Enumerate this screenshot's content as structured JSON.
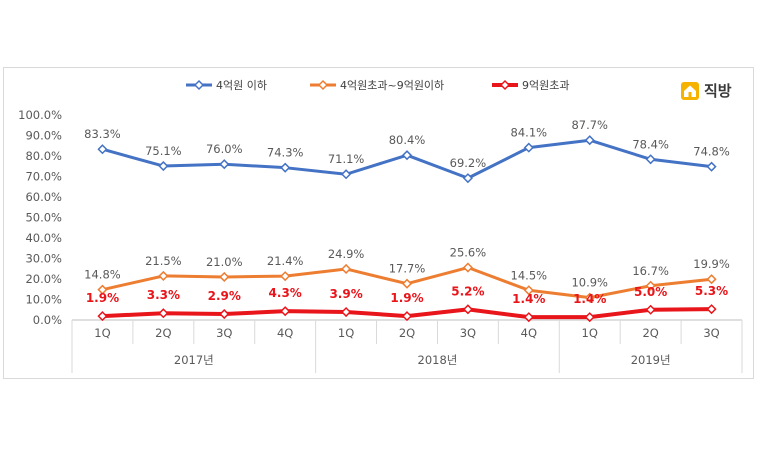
{
  "brand": {
    "name": "직방"
  },
  "chart_data": {
    "type": "line",
    "categories": [
      "1Q",
      "2Q",
      "3Q",
      "4Q",
      "1Q",
      "2Q",
      "3Q",
      "4Q",
      "1Q",
      "2Q",
      "3Q"
    ],
    "groups": [
      {
        "label": "2017년",
        "span": 4
      },
      {
        "label": "2018년",
        "span": 4
      },
      {
        "label": "2019년",
        "span": 3
      }
    ],
    "ylim": [
      0,
      100
    ],
    "yticks": [
      "0.0%",
      "10.0%",
      "20.0%",
      "30.0%",
      "40.0%",
      "50.0%",
      "60.0%",
      "70.0%",
      "80.0%",
      "90.0%",
      "100.0%"
    ],
    "legend_position": "top",
    "series": [
      {
        "name": "4억원 이하",
        "color": "#4472c4",
        "values": [
          83.3,
          75.1,
          76.0,
          74.3,
          71.1,
          80.4,
          69.2,
          84.1,
          87.7,
          78.4,
          74.8
        ],
        "labels": [
          "83.3%",
          "75.1%",
          "76.0%",
          "74.3%",
          "71.1%",
          "80.4%",
          "69.2%",
          "84.1%",
          "87.7%",
          "78.4%",
          "74.8%"
        ]
      },
      {
        "name": "4억원초과~9억원이하",
        "color": "#ed7d31",
        "values": [
          14.8,
          21.5,
          21.0,
          21.4,
          24.9,
          17.7,
          25.6,
          14.5,
          10.9,
          16.7,
          19.9
        ],
        "labels": [
          "14.8%",
          "21.5%",
          "21.0%",
          "21.4%",
          "24.9%",
          "17.7%",
          "25.6%",
          "14.5%",
          "10.9%",
          "16.7%",
          "19.9%"
        ]
      },
      {
        "name": "9억원초과",
        "color": "#e8151b",
        "values": [
          1.9,
          3.3,
          2.9,
          4.3,
          3.9,
          1.9,
          5.2,
          1.4,
          1.4,
          5.0,
          5.3
        ],
        "labels": [
          "1.9%",
          "3.3%",
          "2.9%",
          "4.3%",
          "3.9%",
          "1.9%",
          "5.2%",
          "1.4%",
          "1.4%",
          "5.0%",
          "5.3%"
        ]
      }
    ]
  }
}
